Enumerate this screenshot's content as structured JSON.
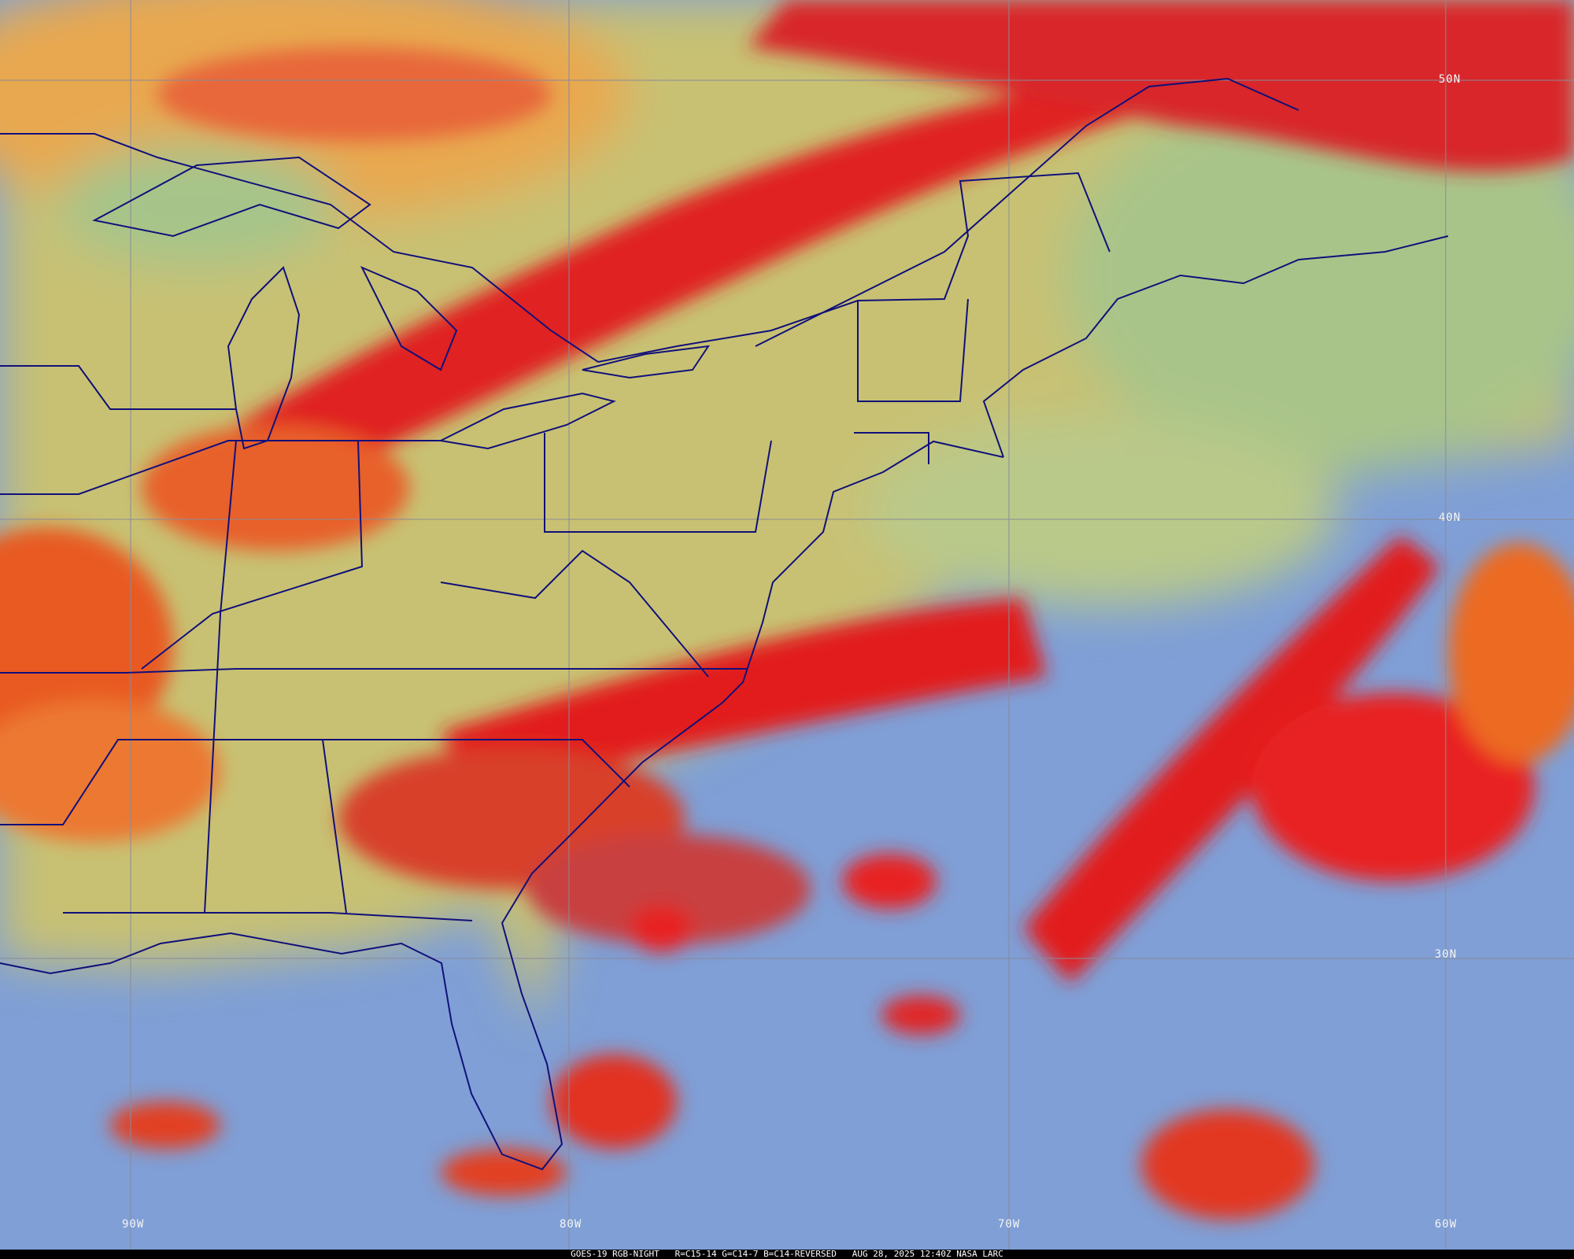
{
  "caption": {
    "satellite": "GOES-19 RGB-NIGHT",
    "channels": "R=C15-14 G=C14-7 B=C14-REVERSED",
    "timestamp": "AUG 28, 2025 12:40Z",
    "source": "NASA LARC"
  },
  "grid_labels": {
    "lat": [
      "50N",
      "40N",
      "30N"
    ],
    "lon": [
      "90W",
      "80W",
      "70W",
      "60W"
    ]
  },
  "colors": {
    "land": "#c8c173",
    "ocean": "#7f9fd6",
    "high_cloud": "#e41e1e",
    "mid_cloud": "#f0802c",
    "borders": "#10107a",
    "gridlines": "#8a8a9a"
  }
}
